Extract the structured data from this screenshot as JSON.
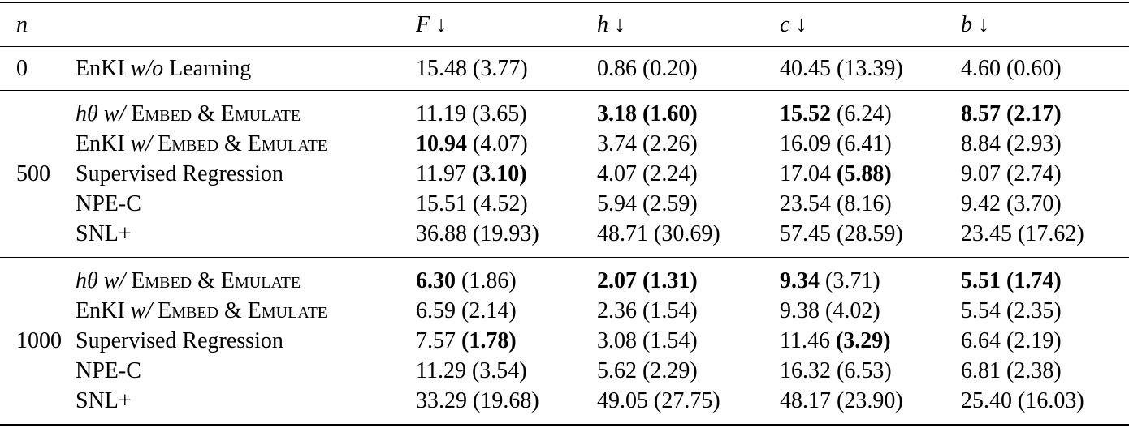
{
  "table": {
    "columns": {
      "n": "n",
      "metrics": [
        {
          "symbol": "F",
          "arrow": "↓"
        },
        {
          "symbol": "h",
          "arrow": "↓"
        },
        {
          "symbol": "c",
          "arrow": "↓"
        },
        {
          "symbol": "b",
          "arrow": "↓"
        }
      ]
    },
    "groups": [
      {
        "n": "0",
        "rows": [
          {
            "method": [
              {
                "text": "EnKI",
                "style": "roman"
              },
              {
                "text": "w/o",
                "style": "italic"
              },
              {
                "text": "Learning",
                "style": "roman"
              }
            ],
            "cells": [
              {
                "mean": "15.48",
                "std": "(3.77)",
                "bold": []
              },
              {
                "mean": "0.86",
                "std": "(0.20)",
                "bold": []
              },
              {
                "mean": "40.45",
                "std": "(13.39)",
                "bold": []
              },
              {
                "mean": "4.60",
                "std": "(0.60)",
                "bold": []
              }
            ]
          }
        ]
      },
      {
        "n": "500",
        "rows": [
          {
            "method": [
              {
                "text": "hθ",
                "style": "italic"
              },
              {
                "text": "w/",
                "style": "italic"
              },
              {
                "text": "Embed & Emulate",
                "style": "smallcaps"
              }
            ],
            "cells": [
              {
                "mean": "11.19",
                "std": "(3.65)",
                "bold": []
              },
              {
                "mean": "3.18",
                "std": "(1.60)",
                "bold": [
                  "mean",
                  "std"
                ]
              },
              {
                "mean": "15.52",
                "std": "(6.24)",
                "bold": [
                  "mean"
                ]
              },
              {
                "mean": "8.57",
                "std": "(2.17)",
                "bold": [
                  "mean",
                  "std"
                ]
              }
            ]
          },
          {
            "method": [
              {
                "text": "EnKI",
                "style": "roman"
              },
              {
                "text": "w/",
                "style": "italic"
              },
              {
                "text": "Embed & Emulate",
                "style": "smallcaps"
              }
            ],
            "cells": [
              {
                "mean": "10.94",
                "std": "(4.07)",
                "bold": [
                  "mean"
                ]
              },
              {
                "mean": "3.74",
                "std": "(2.26)",
                "bold": []
              },
              {
                "mean": "16.09",
                "std": "(6.41)",
                "bold": []
              },
              {
                "mean": "8.84",
                "std": "(2.93)",
                "bold": []
              }
            ]
          },
          {
            "method": [
              {
                "text": "Supervised Regression",
                "style": "roman"
              }
            ],
            "cells": [
              {
                "mean": "11.97",
                "std": "(3.10)",
                "bold": [
                  "std"
                ]
              },
              {
                "mean": "4.07",
                "std": "(2.24)",
                "bold": []
              },
              {
                "mean": "17.04",
                "std": "(5.88)",
                "bold": [
                  "std"
                ]
              },
              {
                "mean": "9.07",
                "std": "(2.74)",
                "bold": []
              }
            ]
          },
          {
            "method": [
              {
                "text": "NPE-C",
                "style": "roman"
              }
            ],
            "cells": [
              {
                "mean": "15.51",
                "std": "(4.52)",
                "bold": []
              },
              {
                "mean": "5.94",
                "std": "(2.59)",
                "bold": []
              },
              {
                "mean": "23.54",
                "std": "(8.16)",
                "bold": []
              },
              {
                "mean": "9.42",
                "std": "(3.70)",
                "bold": []
              }
            ]
          },
          {
            "method": [
              {
                "text": "SNL+",
                "style": "roman"
              }
            ],
            "cells": [
              {
                "mean": "36.88",
                "std": "(19.93)",
                "bold": []
              },
              {
                "mean": "48.71",
                "std": "(30.69)",
                "bold": []
              },
              {
                "mean": "57.45",
                "std": "(28.59)",
                "bold": []
              },
              {
                "mean": "23.45",
                "std": "(17.62)",
                "bold": []
              }
            ]
          }
        ]
      },
      {
        "n": "1000",
        "rows": [
          {
            "method": [
              {
                "text": "hθ",
                "style": "italic"
              },
              {
                "text": "w/",
                "style": "italic"
              },
              {
                "text": "Embed & Emulate",
                "style": "smallcaps"
              }
            ],
            "cells": [
              {
                "mean": "6.30",
                "std": "(1.86)",
                "bold": [
                  "mean"
                ]
              },
              {
                "mean": "2.07",
                "std": "(1.31)",
                "bold": [
                  "mean",
                  "std"
                ]
              },
              {
                "mean": "9.34",
                "std": "(3.71)",
                "bold": [
                  "mean"
                ]
              },
              {
                "mean": "5.51",
                "std": "(1.74)",
                "bold": [
                  "mean",
                  "std"
                ]
              }
            ]
          },
          {
            "method": [
              {
                "text": "EnKI",
                "style": "roman"
              },
              {
                "text": "w/",
                "style": "italic"
              },
              {
                "text": "Embed & Emulate",
                "style": "smallcaps"
              }
            ],
            "cells": [
              {
                "mean": "6.59",
                "std": "(2.14)",
                "bold": []
              },
              {
                "mean": "2.36",
                "std": "(1.54)",
                "bold": []
              },
              {
                "mean": "9.38",
                "std": "(4.02)",
                "bold": []
              },
              {
                "mean": "5.54",
                "std": "(2.35)",
                "bold": []
              }
            ]
          },
          {
            "method": [
              {
                "text": "Supervised Regression",
                "style": "roman"
              }
            ],
            "cells": [
              {
                "mean": "7.57",
                "std": "(1.78)",
                "bold": [
                  "std"
                ]
              },
              {
                "mean": "3.08",
                "std": "(1.54)",
                "bold": []
              },
              {
                "mean": "11.46",
                "std": "(3.29)",
                "bold": [
                  "std"
                ]
              },
              {
                "mean": "6.64",
                "std": "(2.19)",
                "bold": []
              }
            ]
          },
          {
            "method": [
              {
                "text": "NPE-C",
                "style": "roman"
              }
            ],
            "cells": [
              {
                "mean": "11.29",
                "std": "(3.54)",
                "bold": []
              },
              {
                "mean": "5.62",
                "std": "(2.29)",
                "bold": []
              },
              {
                "mean": "16.32",
                "std": "(6.53)",
                "bold": []
              },
              {
                "mean": "6.81",
                "std": "(2.38)",
                "bold": []
              }
            ]
          },
          {
            "method": [
              {
                "text": "SNL+",
                "style": "roman"
              }
            ],
            "cells": [
              {
                "mean": "33.29",
                "std": "(19.68)",
                "bold": []
              },
              {
                "mean": "49.05",
                "std": "(27.75)",
                "bold": []
              },
              {
                "mean": "48.17",
                "std": "(23.90)",
                "bold": []
              },
              {
                "mean": "25.40",
                "std": "(16.03)",
                "bold": []
              }
            ]
          }
        ]
      }
    ]
  }
}
